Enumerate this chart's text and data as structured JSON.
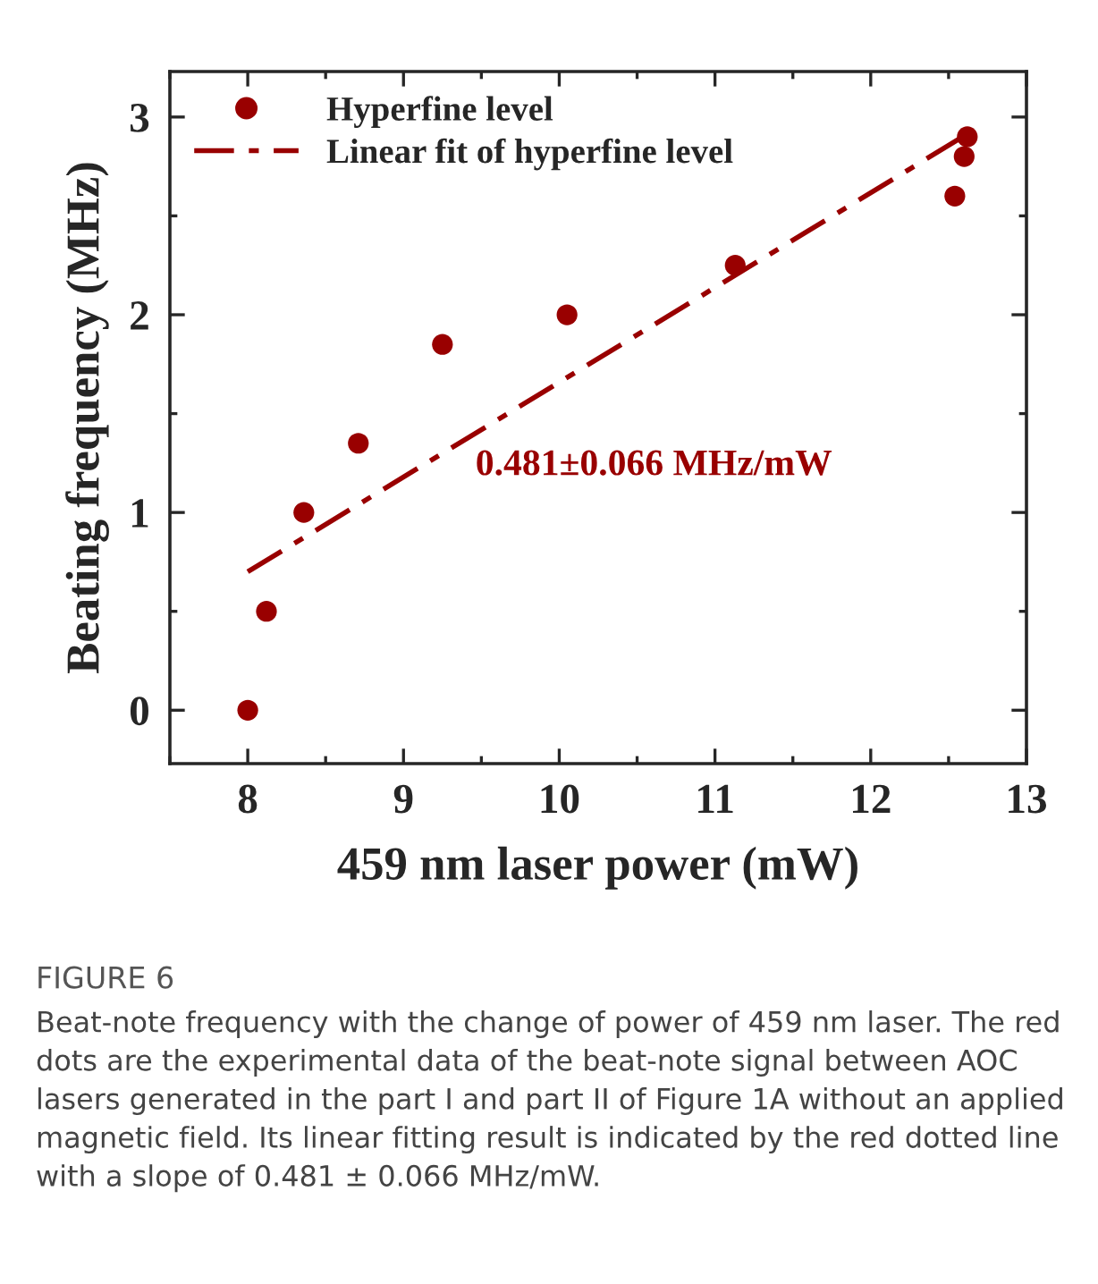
{
  "chart_data": {
    "type": "scatter",
    "xlabel": "459 nm laser power (mW)",
    "ylabel": "Beating frequency (MHz)",
    "series": [
      {
        "name": "Hyperfine level",
        "color": "#990000",
        "marker": "circle",
        "x": [
          8.0,
          8.12,
          8.36,
          8.71,
          9.25,
          10.05,
          11.13,
          12.54,
          12.6,
          12.62
        ],
        "values": [
          0,
          0.5,
          1.0,
          1.35,
          1.85,
          2.0,
          2.25,
          2.6,
          2.8,
          2.9
        ]
      },
      {
        "name": "Linear fit of hyperfine level",
        "type": "line",
        "color": "#990000",
        "line_style": "dashdot",
        "marker": "none",
        "x": [
          8.0,
          12.57
        ],
        "values": [
          0.7,
          2.89
        ]
      }
    ],
    "xlim": [
      7.5,
      13
    ],
    "ylim": [
      -0.27,
      3.23
    ],
    "xticks": [
      8,
      9,
      10,
      11,
      12,
      13
    ],
    "yticks": [
      0,
      1,
      2,
      3
    ],
    "legend": "top left",
    "grid": false,
    "annotations": [
      "0.481±0.066 MHz/mW",
      "FIGURE 6",
      "Beat-note frequency with the change of power of 459 nm laser. The red dots are the experimental data of the beat-note signal between AOC lasers generated in the part I and part II of Figure 1A without an applied magnetic field. Its linear fitting result is indicated by the red dotted line with a slope of 0.481 ± 0.066 MHz/mW."
    ]
  }
}
